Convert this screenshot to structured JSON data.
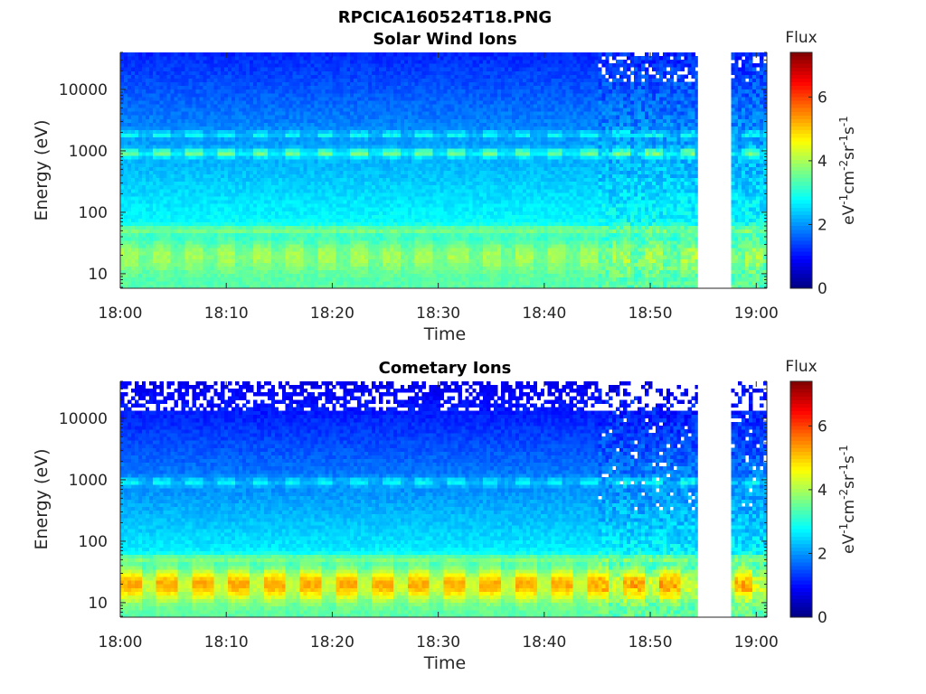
{
  "figure_title": "RPCICA160524T18.PNG",
  "chart_data": [
    {
      "type": "heatmap",
      "title": "Solar Wind Ions",
      "xlabel": "Time",
      "ylabel": "Energy (eV)",
      "x_ticks": [
        "18:00",
        "18:10",
        "18:20",
        "18:30",
        "18:40",
        "18:50",
        "19:00"
      ],
      "y_scale": "log",
      "y_ticks": [
        "10",
        "100",
        "1000",
        "10000"
      ],
      "y_range_eV": [
        5.8,
        40000
      ],
      "x_range_min": [
        0,
        61
      ],
      "data_gap_min": [
        54.5,
        57.6
      ],
      "colorbar": {
        "label": "Flux",
        "unit": "eV⁻¹cm⁻²sr⁻¹s⁻¹",
        "unit_parts": [
          "eV",
          "-1",
          "cm",
          "-2",
          "sr",
          "-1",
          "s",
          "-1"
        ],
        "ticks": [
          "0",
          "2",
          "4",
          "6"
        ],
        "range": [
          0,
          7.4
        ],
        "colormap": "jet"
      },
      "features": [
        {
          "name": "low-energy band",
          "energy_eV": [
            12,
            35
          ],
          "level": 4.3,
          "period_min": 3.1
        },
        {
          "name": "narrow band",
          "energy_eV": [
            45,
            60
          ],
          "level": 3.9
        },
        {
          "name": "1 keV peaks",
          "energy_eV": 930,
          "level": 3.5,
          "period_min": 3.1
        },
        {
          "name": "background at 10 keV",
          "energy_eV": 10000,
          "level": 1.3
        }
      ]
    },
    {
      "type": "heatmap",
      "title": "Cometary Ions",
      "xlabel": "Time",
      "ylabel": "Energy (eV)",
      "x_ticks": [
        "18:00",
        "18:10",
        "18:20",
        "18:30",
        "18:40",
        "18:50",
        "19:00"
      ],
      "y_scale": "log",
      "y_ticks": [
        "10",
        "100",
        "1000",
        "10000"
      ],
      "y_range_eV": [
        5.8,
        40000
      ],
      "x_range_min": [
        0,
        61
      ],
      "data_gap_min": [
        54.5,
        57.6
      ],
      "colorbar": {
        "label": "Flux",
        "unit": "eV⁻¹cm⁻²sr⁻¹s⁻¹",
        "unit_parts": [
          "eV",
          "-1",
          "cm",
          "-2",
          "sr",
          "-1",
          "s",
          "-1"
        ],
        "ticks": [
          "0",
          "2",
          "4",
          "6"
        ],
        "range": [
          0,
          7.4
        ],
        "colormap": "jet"
      },
      "features": [
        {
          "name": "low-energy band",
          "energy_eV": [
            12,
            35
          ],
          "level": 5.6,
          "period_min": 3.4
        },
        {
          "name": "narrow band",
          "energy_eV": [
            45,
            60
          ],
          "level": 3.9
        },
        {
          "name": "1 keV peaks",
          "energy_eV": 930,
          "level": 2.5,
          "period_min": 3.1
        },
        {
          "name": "background at 10 keV",
          "energy_eV": 10000,
          "level": 0.9
        }
      ]
    }
  ]
}
